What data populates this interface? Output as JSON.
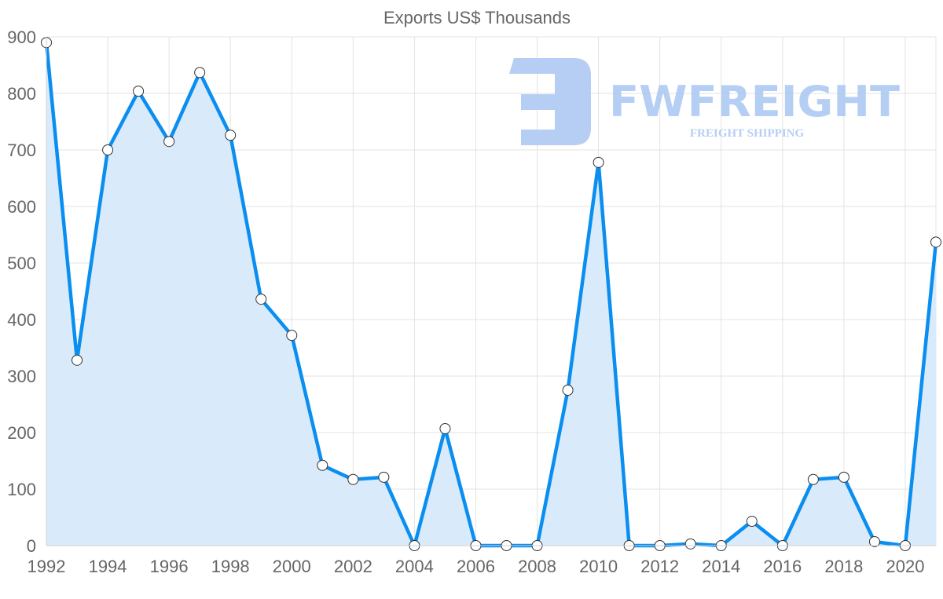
{
  "chart_data": {
    "type": "line",
    "title": "Exports US$ Thousands",
    "xlabel": "",
    "ylabel": "",
    "x": [
      1992,
      1993,
      1994,
      1995,
      1996,
      1997,
      1998,
      1999,
      2000,
      2001,
      2002,
      2003,
      2004,
      2005,
      2006,
      2007,
      2008,
      2009,
      2010,
      2011,
      2012,
      2013,
      2014,
      2015,
      2016,
      2017,
      2018,
      2019,
      2020,
      2021
    ],
    "series": [
      {
        "name": "Exports US$ Thousands",
        "values": [
          890,
          328,
          700,
          804,
          715,
          837,
          726,
          436,
          372,
          142,
          117,
          121,
          0,
          207,
          0,
          0,
          0,
          275,
          678,
          0,
          0,
          3,
          0,
          43,
          0,
          117,
          121,
          7,
          0,
          537
        ],
        "color": "#0a8ef0",
        "fill": "#d9ebfb"
      }
    ],
    "ylim": [
      0,
      900
    ],
    "yticks": [
      0,
      100,
      200,
      300,
      400,
      500,
      600,
      700,
      800,
      900
    ],
    "xticks": [
      1992,
      1994,
      1996,
      1998,
      2000,
      2002,
      2004,
      2006,
      2008,
      2010,
      2012,
      2014,
      2016,
      2018,
      2020
    ],
    "grid": true,
    "legend": "none"
  },
  "watermark": {
    "brand": "FWFREIGHT",
    "tagline": "FREIGHT SHIPPING"
  }
}
